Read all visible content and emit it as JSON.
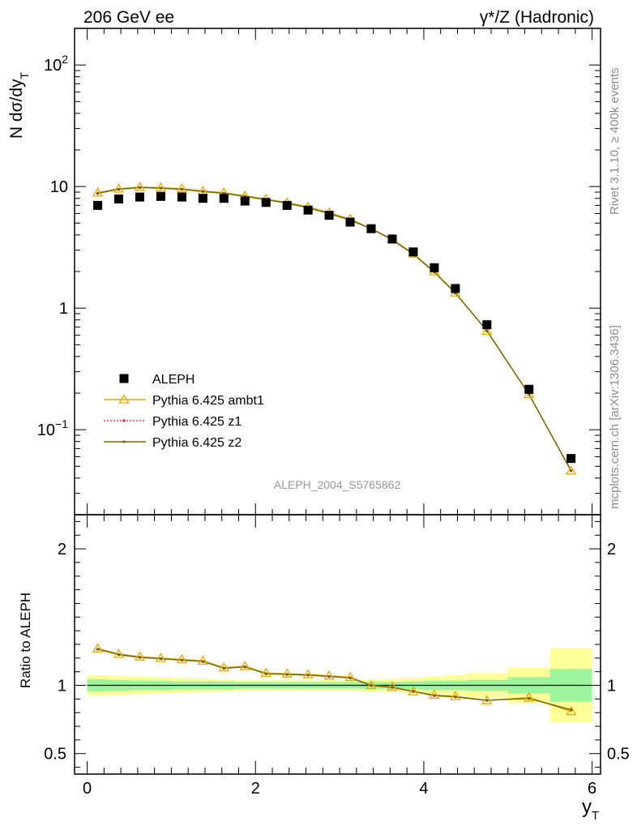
{
  "header": {
    "left_title": "206 GeV ee",
    "right_title": "γ*/Z (Hadronic)"
  },
  "side_labels": {
    "rivet": "Rivet 3.1.10, ≥ 400k events",
    "mcplots": "mcplots.cern.ch [arXiv:1306.3436]"
  },
  "analysis_label": "ALEPH_2004_S5765862",
  "colors": {
    "data": "#000000",
    "ambt1": "#e6a800",
    "z1": "#e8302e",
    "z2": "#6b6b00",
    "band_inner": "#9cf49c",
    "band_outer": "#ffff99"
  },
  "chart_data": [
    {
      "type": "scatter",
      "panel": "main",
      "ylabel": "N dσ/dy",
      "ylabel_subscript": "T",
      "yscale": "log",
      "xlim": [
        -0.15,
        6.1
      ],
      "ylim": [
        0.02,
        200
      ],
      "ytick_labels": [
        {
          "value": 0.1,
          "base": "10",
          "exp": "−1"
        },
        {
          "value": 1,
          "text": "1"
        },
        {
          "value": 10,
          "text": "10"
        },
        {
          "value": 100,
          "base": "10",
          "exp": "2"
        }
      ],
      "legend": {
        "placement": "lower-left",
        "entries": [
          "ALEPH",
          "Pythia 6.425 ambt1",
          "Pythia 6.425 z1",
          "Pythia 6.425 z2"
        ]
      },
      "x": [
        0.125,
        0.375,
        0.625,
        0.875,
        1.125,
        1.375,
        1.625,
        1.875,
        2.125,
        2.375,
        2.625,
        2.875,
        3.125,
        3.375,
        3.625,
        3.875,
        4.125,
        4.375,
        4.75,
        5.25,
        5.75
      ],
      "series": [
        {
          "name": "ALEPH",
          "style": "data",
          "values": [
            7.0,
            7.9,
            8.2,
            8.3,
            8.2,
            8.0,
            8.0,
            7.6,
            7.4,
            7.0,
            6.4,
            5.8,
            5.1,
            4.5,
            3.7,
            2.9,
            2.15,
            1.45,
            0.73,
            0.215,
            0.058
          ]
        },
        {
          "name": "Pythia 6.425 ambt1",
          "style": "ambt1",
          "values": [
            8.9,
            9.6,
            9.9,
            9.8,
            9.6,
            9.2,
            8.9,
            8.4,
            7.9,
            7.4,
            6.8,
            6.1,
            5.4,
            4.5,
            3.7,
            2.8,
            2.0,
            1.34,
            0.65,
            0.196,
            0.046
          ]
        },
        {
          "name": "Pythia 6.425 z1",
          "style": "z1",
          "values": [
            8.8,
            9.5,
            9.8,
            9.7,
            9.5,
            9.1,
            8.8,
            8.3,
            7.8,
            7.3,
            6.7,
            6.0,
            5.3,
            4.5,
            3.65,
            2.78,
            1.98,
            1.33,
            0.65,
            0.195,
            0.046
          ]
        },
        {
          "name": "Pythia 6.425 z2",
          "style": "z2",
          "values": [
            8.8,
            9.5,
            9.8,
            9.7,
            9.5,
            9.1,
            8.8,
            8.3,
            7.8,
            7.3,
            6.7,
            6.0,
            5.3,
            4.5,
            3.65,
            2.78,
            1.98,
            1.33,
            0.65,
            0.195,
            0.046
          ]
        }
      ]
    },
    {
      "type": "line",
      "panel": "ratio",
      "ylabel": "Ratio to ALEPH",
      "xlabel": "y",
      "xlabel_subscript": "T",
      "xlim": [
        -0.15,
        6.1
      ],
      "ylim": [
        0.35,
        2.25
      ],
      "xticks": [
        0,
        2,
        4,
        6
      ],
      "xtick_labels": [
        "0",
        "2",
        "4",
        "6"
      ],
      "yticks": [
        0.5,
        1,
        2
      ],
      "ytick_labels": [
        "0.5",
        "1",
        "2"
      ],
      "bin_edges": [
        0,
        0.25,
        0.5,
        0.75,
        1.0,
        1.25,
        1.5,
        1.75,
        2.0,
        2.25,
        2.5,
        2.75,
        3.0,
        3.25,
        3.5,
        3.75,
        4.0,
        4.25,
        4.5,
        5.0,
        5.5,
        6.0
      ],
      "band_inner": [
        0.045,
        0.04,
        0.035,
        0.035,
        0.03,
        0.03,
        0.03,
        0.025,
        0.025,
        0.025,
        0.025,
        0.025,
        0.025,
        0.025,
        0.025,
        0.03,
        0.035,
        0.035,
        0.04,
        0.06,
        0.12
      ],
      "band_outer": [
        0.075,
        0.07,
        0.065,
        0.06,
        0.055,
        0.05,
        0.045,
        0.04,
        0.04,
        0.04,
        0.04,
        0.04,
        0.04,
        0.045,
        0.05,
        0.055,
        0.065,
        0.075,
        0.09,
        0.13,
        0.27
      ],
      "x": [
        0.125,
        0.375,
        0.625,
        0.875,
        1.125,
        1.375,
        1.625,
        1.875,
        2.125,
        2.375,
        2.625,
        2.875,
        3.125,
        3.375,
        3.625,
        3.875,
        4.125,
        4.375,
        4.75,
        5.25,
        5.75
      ],
      "series": [
        {
          "name": "Pythia 6.425 ambt1",
          "style": "ambt1",
          "values": [
            1.27,
            1.23,
            1.21,
            1.2,
            1.19,
            1.18,
            1.13,
            1.14,
            1.09,
            1.085,
            1.08,
            1.07,
            1.06,
            1.0,
            0.99,
            0.955,
            0.93,
            0.92,
            0.89,
            0.91,
            0.81
          ]
        },
        {
          "name": "Pythia 6.425 z1",
          "style": "z1",
          "values": [
            1.265,
            1.225,
            1.205,
            1.195,
            1.185,
            1.175,
            1.125,
            1.135,
            1.085,
            1.08,
            1.075,
            1.065,
            1.055,
            1.0,
            0.985,
            0.955,
            0.925,
            0.915,
            0.89,
            0.905,
            0.82
          ]
        },
        {
          "name": "Pythia 6.425 z2",
          "style": "z2",
          "values": [
            1.265,
            1.225,
            1.205,
            1.195,
            1.185,
            1.175,
            1.125,
            1.135,
            1.085,
            1.08,
            1.075,
            1.065,
            1.055,
            1.0,
            0.985,
            0.955,
            0.925,
            0.915,
            0.89,
            0.905,
            0.82
          ]
        }
      ]
    }
  ]
}
